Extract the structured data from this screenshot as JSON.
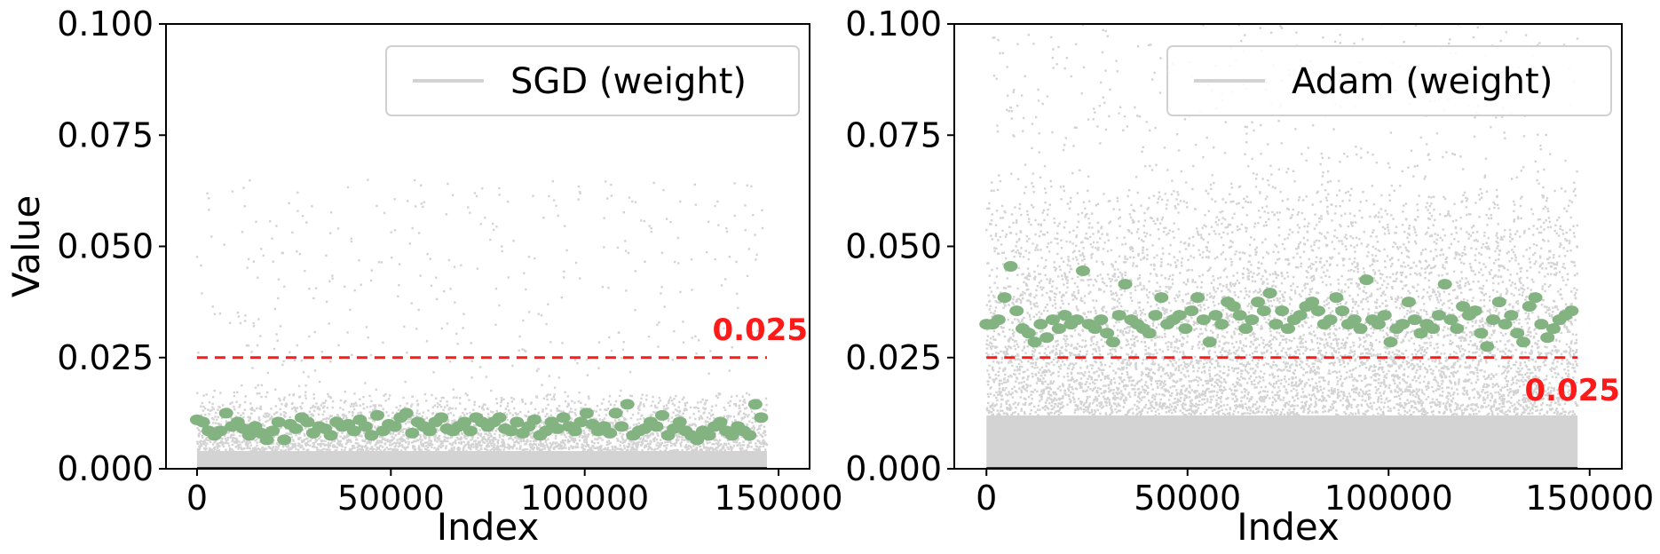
{
  "chart_data": [
    {
      "type": "scatter",
      "xlabel": "Index",
      "ylabel": "Value",
      "xlim": [
        -8000,
        158000
      ],
      "ylim": [
        0.0,
        0.1
      ],
      "xticks": [
        0,
        50000,
        100000,
        150000
      ],
      "yticks": [
        0.0,
        0.025,
        0.05,
        0.075,
        0.1
      ],
      "xtick_labels": [
        "0",
        "50000",
        "100000",
        "150000"
      ],
      "ytick_labels": [
        "0.000",
        "0.025",
        "0.050",
        "0.075",
        "0.100"
      ],
      "x_max": 147000,
      "legend": {
        "label": "SGD (weight)",
        "placement": "top-right"
      },
      "threshold": {
        "value": 0.025,
        "label": "0.025",
        "label_placement": "above-right"
      },
      "noise": {
        "color": "#d3d3d3",
        "baseline": 0.004,
        "typical_max": 0.018,
        "spike_max": 0.065,
        "n_points": 3400
      },
      "zero_line": {
        "value": 0.0,
        "color": "#000000"
      },
      "group_means": {
        "color": "#82b380",
        "x": [
          0,
          1500,
          3000,
          4500,
          6000,
          7500,
          9000,
          10500,
          12000,
          13500,
          15000,
          16500,
          18000,
          19500,
          21000,
          22500,
          24000,
          25500,
          27000,
          28500,
          30000,
          31500,
          33000,
          34500,
          36000,
          37500,
          39000,
          40500,
          42000,
          43500,
          45000,
          46500,
          48000,
          49500,
          51000,
          52500,
          54000,
          55500,
          57000,
          58500,
          60000,
          61500,
          63000,
          64500,
          66000,
          67500,
          69000,
          70500,
          72000,
          73500,
          75000,
          76500,
          78000,
          79500,
          81000,
          82500,
          84000,
          85500,
          87000,
          88500,
          90000,
          91500,
          93000,
          94500,
          96000,
          97500,
          99000,
          100500,
          102000,
          103500,
          105000,
          106500,
          108000,
          109500,
          111000,
          112500,
          114000,
          115500,
          117000,
          118500,
          120000,
          121500,
          123000,
          124500,
          126000,
          127500,
          129000,
          130500,
          132000,
          133500,
          135000,
          136500,
          138000,
          139500,
          141000,
          142500,
          144000,
          145500
        ],
        "y": [
          0.011,
          0.0105,
          0.0085,
          0.0075,
          0.0085,
          0.0125,
          0.0095,
          0.0105,
          0.009,
          0.0075,
          0.0095,
          0.008,
          0.0065,
          0.0085,
          0.0105,
          0.0065,
          0.01,
          0.009,
          0.0115,
          0.0105,
          0.008,
          0.0095,
          0.009,
          0.0075,
          0.0105,
          0.0095,
          0.01,
          0.0085,
          0.011,
          0.0095,
          0.0075,
          0.012,
          0.0085,
          0.01,
          0.0095,
          0.0115,
          0.0125,
          0.008,
          0.0105,
          0.0095,
          0.0085,
          0.0105,
          0.0115,
          0.009,
          0.0085,
          0.0095,
          0.0105,
          0.0085,
          0.0115,
          0.0105,
          0.0095,
          0.0105,
          0.0115,
          0.009,
          0.0085,
          0.0105,
          0.008,
          0.0095,
          0.011,
          0.0075,
          0.0085,
          0.0105,
          0.009,
          0.0115,
          0.0095,
          0.0085,
          0.0105,
          0.0125,
          0.01,
          0.0085,
          0.0095,
          0.008,
          0.0125,
          0.0095,
          0.0145,
          0.0075,
          0.0085,
          0.009,
          0.0105,
          0.0095,
          0.012,
          0.0075,
          0.009,
          0.0105,
          0.0085,
          0.0075,
          0.0065,
          0.0085,
          0.0075,
          0.0095,
          0.0105,
          0.0085,
          0.0075,
          0.0095,
          0.0085,
          0.0075,
          0.0145,
          0.0115
        ]
      }
    },
    {
      "type": "scatter",
      "xlabel": "Index",
      "ylabel": "",
      "xlim": [
        -8000,
        158000
      ],
      "ylim": [
        0.0,
        0.1
      ],
      "xticks": [
        0,
        50000,
        100000,
        150000
      ],
      "yticks": [
        0.0,
        0.025,
        0.05,
        0.075,
        0.1
      ],
      "xtick_labels": [
        "0",
        "50000",
        "100000",
        "150000"
      ],
      "ytick_labels": [
        "0.000",
        "0.025",
        "0.050",
        "0.075",
        "0.100"
      ],
      "x_max": 147000,
      "legend": {
        "label": "Adam (weight)",
        "placement": "top-right"
      },
      "threshold": {
        "value": 0.025,
        "label": "0.025",
        "label_placement": "below-right"
      },
      "noise": {
        "color": "#d3d3d3",
        "baseline": 0.012,
        "typical_max": 0.07,
        "spike_max": 0.1,
        "n_points": 7000
      },
      "zero_line": {
        "value": 0.0,
        "color": "#000000"
      },
      "group_means": {
        "color": "#82b380",
        "x": [
          0,
          1500,
          3000,
          4500,
          6000,
          7500,
          9000,
          10500,
          12000,
          13500,
          15000,
          16500,
          18000,
          19500,
          21000,
          22500,
          24000,
          25500,
          27000,
          28500,
          30000,
          31500,
          33000,
          34500,
          36000,
          37500,
          39000,
          40500,
          42000,
          43500,
          45000,
          46500,
          48000,
          49500,
          51000,
          52500,
          54000,
          55500,
          57000,
          58500,
          60000,
          61500,
          63000,
          64500,
          66000,
          67500,
          69000,
          70500,
          72000,
          73500,
          75000,
          76500,
          78000,
          79500,
          81000,
          82500,
          84000,
          85500,
          87000,
          88500,
          90000,
          91500,
          93000,
          94500,
          96000,
          97500,
          99000,
          100500,
          102000,
          103500,
          105000,
          106500,
          108000,
          109500,
          111000,
          112500,
          114000,
          115500,
          117000,
          118500,
          120000,
          121500,
          123000,
          124500,
          126000,
          127500,
          129000,
          130500,
          132000,
          133500,
          135000,
          136500,
          138000,
          139500,
          141000,
          142500,
          144000,
          145500
        ],
        "y": [
          0.0325,
          0.0325,
          0.0335,
          0.0385,
          0.0455,
          0.0355,
          0.0315,
          0.0305,
          0.0285,
          0.0325,
          0.0295,
          0.0335,
          0.0315,
          0.0345,
          0.0325,
          0.0335,
          0.0445,
          0.0325,
          0.0315,
          0.0335,
          0.0305,
          0.0285,
          0.0345,
          0.0415,
          0.0335,
          0.0325,
          0.0315,
          0.0305,
          0.0345,
          0.0385,
          0.0325,
          0.0335,
          0.0345,
          0.0315,
          0.0355,
          0.0385,
          0.0335,
          0.0285,
          0.0345,
          0.0325,
          0.0375,
          0.0365,
          0.0345,
          0.0315,
          0.0335,
          0.0375,
          0.0355,
          0.0395,
          0.0325,
          0.0355,
          0.0315,
          0.0335,
          0.0345,
          0.0365,
          0.0375,
          0.0355,
          0.0325,
          0.0335,
          0.0385,
          0.0355,
          0.0325,
          0.0335,
          0.0315,
          0.0425,
          0.0335,
          0.0325,
          0.0345,
          0.0285,
          0.0315,
          0.0325,
          0.0375,
          0.0335,
          0.0305,
          0.0325,
          0.0315,
          0.0345,
          0.0415,
          0.0335,
          0.0315,
          0.0365,
          0.0345,
          0.0355,
          0.0305,
          0.0275,
          0.0335,
          0.0375,
          0.0325,
          0.0345,
          0.0305,
          0.0285,
          0.0365,
          0.0385,
          0.0325,
          0.0295,
          0.0315,
          0.0335,
          0.0345,
          0.0355
        ]
      }
    }
  ]
}
